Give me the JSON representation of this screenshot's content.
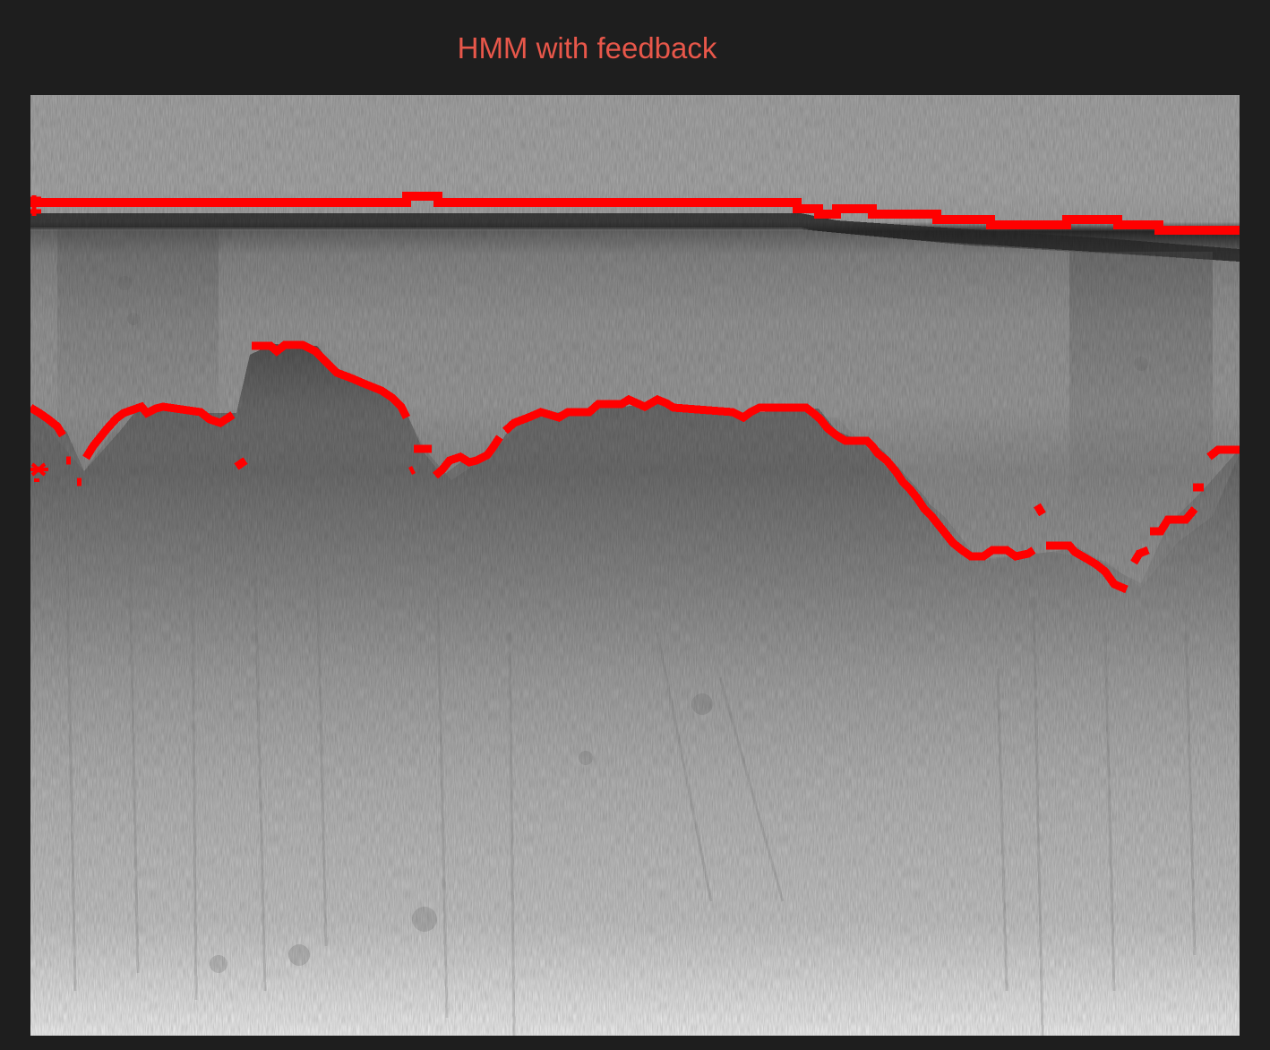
{
  "title": {
    "text": "HMM with feedback",
    "color": "#e8574a"
  },
  "colors": {
    "background": "#1e1e1e",
    "trace": "#ff0000",
    "radargram_light": "#f2f2f2",
    "radargram_mid": "#a9a9a9",
    "radargram_dark": "#1a1a1a"
  },
  "image": {
    "kind": "grayscale radargram with two red tracked boundaries",
    "boundaries": [
      "surface-boundary",
      "bottom-boundary"
    ]
  }
}
